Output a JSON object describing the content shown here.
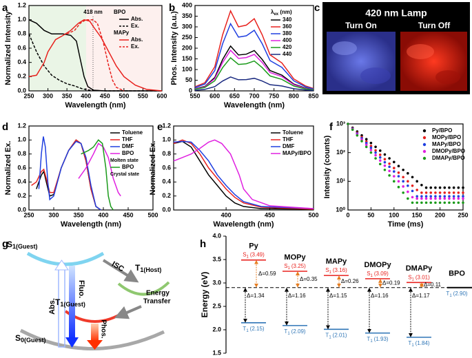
{
  "panel_labels": [
    "a",
    "b",
    "c",
    "d",
    "e",
    "f",
    "g",
    "h"
  ],
  "image_panel": {
    "title": "420 nm Lamp",
    "left": "Turn On",
    "right": "Turn Off"
  },
  "diagram": {
    "states": [
      {
        "symbol": "S",
        "sub": "1(Guest)"
      },
      {
        "symbol": "T",
        "sub": "1(Host)"
      },
      {
        "symbol": "T",
        "sub": "1(Guest)"
      },
      {
        "symbol": "S",
        "sub": "0(Guest)"
      }
    ],
    "isc": "ISC",
    "energy_transfer": [
      "Energy",
      "Transfer"
    ],
    "abs": "Abs.",
    "fluo": "Fluo.",
    "phos": "Phos."
  },
  "chart_data": [
    {
      "type": "line",
      "x_label": "Wavelength (nm)",
      "y_label": "Normalized Intensity",
      "xlim": [
        250,
        600
      ],
      "xticks": [
        250,
        300,
        350,
        400,
        450,
        500,
        550,
        600
      ],
      "ylim": [
        0,
        1.2
      ],
      "yticks": [
        {
          "value": 0,
          "label": "0.0"
        },
        0.2,
        0.4,
        0.6,
        0.8,
        {
          "value": 1,
          "label": "1.0"
        },
        1.2
      ],
      "legend": "upper right",
      "legend_text_colored": true,
      "annotation": "418 nm",
      "series": [
        {
          "group": "BPO",
          "name": "Abs.",
          "color": "#000000",
          "dash": false,
          "x": [
            250,
            270,
            290,
            310,
            340,
            360,
            375,
            385,
            395,
            405,
            420,
            450,
            600
          ],
          "values": [
            1.0,
            0.95,
            0.85,
            0.8,
            0.8,
            0.78,
            0.7,
            0.45,
            0.2,
            0.06,
            0.01,
            0,
            0
          ]
        },
        {
          "name": "Ex.",
          "color": "#000000",
          "dash": true,
          "x": [
            250,
            270,
            290,
            310,
            330,
            350,
            370,
            390,
            410,
            450,
            600
          ],
          "values": [
            0.8,
            0.55,
            0.35,
            0.22,
            0.15,
            0.1,
            0.07,
            0.03,
            0.01,
            0,
            0
          ]
        },
        {
          "group": "MAPy",
          "name": "Abs.",
          "color": "#e8211d",
          "dash": false,
          "x": [
            250,
            270,
            290,
            300,
            320,
            340,
            360,
            380,
            395,
            410,
            420,
            440,
            460,
            480,
            500,
            530,
            560,
            600
          ],
          "values": [
            0.2,
            0.22,
            0.4,
            0.55,
            0.72,
            0.78,
            0.85,
            0.95,
            1.0,
            0.98,
            0.9,
            0.75,
            0.55,
            0.35,
            0.2,
            0.08,
            0.02,
            0
          ]
        },
        {
          "name": "Ex.",
          "color": "#e8211d",
          "dash": true,
          "x": [
            350,
            370,
            385,
            400,
            418,
            430,
            445,
            460,
            470,
            480,
            500
          ],
          "values": [
            0.8,
            0.85,
            0.95,
            1.0,
            1.0,
            0.95,
            0.7,
            0.35,
            0.15,
            0.05,
            0
          ]
        }
      ]
    },
    {
      "type": "line",
      "x_label": "Wavelength (nm)",
      "y_label": "Phos. Intensity (a.u.)",
      "xlim": [
        550,
        850
      ],
      "xticks": [
        550,
        600,
        650,
        700,
        750,
        800,
        850
      ],
      "ylim": [
        0,
        400
      ],
      "yticks": [
        0,
        50,
        100,
        150,
        200,
        250,
        300,
        350,
        400
      ],
      "legend": "upper right",
      "legend_text_colored": false,
      "legend_title": {
        "main": "λ",
        "sub": "ex",
        "rest": " (nm)"
      },
      "x": [
        550,
        575,
        600,
        620,
        640,
        660,
        680,
        700,
        720,
        740,
        770,
        800,
        830,
        850
      ],
      "series": [
        {
          "name": "340",
          "color": "#000000",
          "values": [
            11,
            21,
            63,
            147,
            210,
            168,
            172,
            189,
            147,
            95,
            74,
            32,
            13,
            6
          ]
        },
        {
          "name": "360",
          "color": "#e8211d",
          "values": [
            19,
            38,
            113,
            263,
            375,
            300,
            308,
            338,
            263,
            169,
            131,
            56,
            23,
            11
          ]
        },
        {
          "name": "380",
          "color": "#1f3fe0",
          "values": [
            16,
            32,
            95,
            221,
            315,
            252,
            258,
            284,
            221,
            142,
            110,
            47,
            19,
            9
          ]
        },
        {
          "name": "400",
          "color": "#e020e0",
          "values": [
            10,
            19,
            57,
            133,
            190,
            152,
            156,
            171,
            133,
            86,
            67,
            29,
            11,
            6
          ]
        },
        {
          "name": "420",
          "color": "#1a9a1a",
          "values": [
            8,
            16,
            47,
            109,
            155,
            124,
            127,
            140,
            109,
            70,
            54,
            23,
            9,
            5
          ]
        },
        {
          "name": "440",
          "color": "#1a2a80",
          "values": [
            3,
            7,
            20,
            46,
            65,
            52,
            53,
            59,
            46,
            29,
            23,
            10,
            4,
            2
          ]
        }
      ]
    },
    {
      "type": "line",
      "x_label": "Wavelength (nm)",
      "y_label": "Normalized Ex.",
      "xlim": [
        250,
        500
      ],
      "xticks": [
        250,
        300,
        350,
        400,
        450,
        500
      ],
      "ylim": [
        0,
        1.2
      ],
      "yticks": [
        {
          "value": 0,
          "label": "0.0"
        },
        0.2,
        0.4,
        0.6,
        0.8,
        {
          "value": 1,
          "label": "1.0"
        },
        1.2
      ],
      "legend": "upper right",
      "legend_text_colored": true,
      "series": [
        {
          "name": "Toluene",
          "color": "#000000",
          "x": [
            265,
            275,
            280,
            285,
            292,
            300,
            315,
            330,
            345,
            355,
            365,
            375,
            385,
            395
          ],
          "values": [
            0.3,
            0.5,
            0.55,
            0.4,
            0.2,
            0.22,
            0.6,
            0.85,
            1.0,
            0.95,
            0.7,
            0.3,
            0.05,
            0
          ]
        },
        {
          "name": "THF",
          "color": "#e8211d",
          "x": [
            255,
            265,
            275,
            280,
            285,
            292,
            300,
            315,
            330,
            345,
            355,
            365,
            375,
            385,
            395
          ],
          "values": [
            0.35,
            0.4,
            0.55,
            0.58,
            0.45,
            0.25,
            0.25,
            0.6,
            0.85,
            1.0,
            0.95,
            0.7,
            0.3,
            0.05,
            0
          ]
        },
        {
          "name": "DMF",
          "color": "#1f3fe0",
          "x": [
            270,
            275,
            279,
            283,
            288,
            292,
            300,
            315,
            330,
            345,
            355,
            365,
            375,
            385,
            395
          ],
          "values": [
            0.3,
            0.8,
            1.05,
            0.9,
            0.4,
            0.15,
            0.2,
            0.6,
            0.85,
            0.98,
            0.95,
            0.75,
            0.35,
            0.05,
            0
          ]
        },
        {
          "name": "BPO",
          "note": "Molten state",
          "color": "#e020e0",
          "x": [
            350,
            365,
            380,
            390,
            400,
            410,
            420,
            430,
            435
          ],
          "values": [
            0.45,
            0.6,
            0.8,
            0.95,
            0.9,
            0.75,
            0.45,
            0.25,
            0.2
          ]
        },
        {
          "name": "BPO",
          "note": "Crystal state",
          "color": "#1a9a1a",
          "x": [
            355,
            370,
            380,
            390,
            398,
            405,
            410,
            415,
            420
          ],
          "values": [
            0.8,
            0.85,
            0.9,
            1.0,
            0.95,
            0.6,
            0.2,
            0.05,
            0
          ]
        }
      ]
    },
    {
      "type": "line",
      "x_label": "Wavelength (nm)",
      "y_label": "Normalized Ex.",
      "xlim": [
        340,
        500
      ],
      "xticks": [
        400,
        450,
        500
      ],
      "ylim": [
        0,
        1.2
      ],
      "yticks": [
        {
          "value": 0,
          "label": "0.0"
        },
        0.2,
        0.4,
        0.6,
        0.8,
        {
          "value": 1,
          "label": "1.0"
        },
        1.2
      ],
      "legend": "upper right",
      "legend_text_colored": true,
      "series": [
        {
          "name": "Toluene",
          "color": "#000000",
          "x": [
            340,
            350,
            360,
            370,
            380,
            390,
            400,
            410,
            420,
            440,
            500
          ],
          "values": [
            0.95,
            0.98,
            0.9,
            0.7,
            0.5,
            0.35,
            0.2,
            0.1,
            0.05,
            0.02,
            0.01
          ]
        },
        {
          "name": "THF",
          "color": "#e8211d",
          "x": [
            340,
            350,
            360,
            370,
            380,
            390,
            400,
            410,
            420,
            440,
            500
          ],
          "values": [
            0.95,
            1.0,
            0.95,
            0.8,
            0.6,
            0.45,
            0.3,
            0.18,
            0.1,
            0.04,
            0.01
          ]
        },
        {
          "name": "DMF",
          "color": "#1f3fe0",
          "x": [
            340,
            350,
            360,
            370,
            380,
            390,
            400,
            410,
            420,
            440,
            500
          ],
          "values": [
            0.97,
            0.98,
            0.97,
            0.85,
            0.7,
            0.5,
            0.35,
            0.22,
            0.12,
            0.05,
            0.02
          ]
        },
        {
          "name": "MAPy/BPO",
          "color": "#e020e0",
          "x": [
            340,
            350,
            360,
            370,
            380,
            387,
            395,
            405,
            415,
            420,
            430,
            450,
            500
          ],
          "values": [
            0.7,
            0.75,
            0.8,
            0.88,
            0.97,
            1.0,
            0.95,
            0.8,
            0.5,
            0.3,
            0.15,
            0.06,
            0.02
          ]
        }
      ]
    },
    {
      "type": "scatter",
      "x_label": "Time (ms)",
      "y_label": "Intensity (counts)",
      "xlim": [
        0,
        250
      ],
      "xticks": [
        0,
        50,
        100,
        150,
        200,
        250
      ],
      "y_scale": "log",
      "ylim": [
        1,
        1000
      ],
      "yticks": [
        {
          "value": 1,
          "label": "10⁰"
        },
        {
          "value": 10,
          "label": "10¹"
        },
        {
          "value": 100,
          "label": "10²"
        },
        {
          "value": 1000,
          "label": "10³"
        }
      ],
      "legend": "upper right",
      "legend_text_colored": false,
      "x": [
        0,
        10,
        20,
        30,
        40,
        50,
        60,
        70,
        80,
        90,
        100,
        110,
        120,
        130,
        140,
        150,
        160,
        170,
        180,
        190,
        200,
        210,
        220,
        230,
        240,
        250
      ],
      "series": [
        {
          "name": "Py/BPO",
          "color": "#000000",
          "values": [
            1000,
            736,
            542,
            399,
            293,
            216,
            159,
            117,
            86,
            63,
            47,
            34,
            25,
            19,
            14,
            10,
            7.4,
            6,
            6,
            6,
            6,
            6,
            6,
            6,
            6,
            6
          ]
        },
        {
          "name": "MOPy/BPO",
          "color": "#e8211d",
          "values": [
            1000,
            702,
            493,
            346,
            243,
            170,
            120,
            84,
            59,
            41,
            29,
            20,
            14,
            10,
            7,
            5,
            4,
            4,
            4,
            4,
            4,
            4,
            4,
            4,
            4,
            4
          ]
        },
        {
          "name": "MAPy/BPO",
          "color": "#1f3fe0",
          "values": [
            1000,
            681,
            464,
            316,
            215,
            147,
            100,
            68,
            46,
            32,
            22,
            15,
            10,
            7,
            4.6,
            3,
            3,
            3,
            3,
            3,
            3,
            3,
            3,
            3,
            3,
            3
          ]
        },
        {
          "name": "DMOPy/BPO",
          "color": "#e020e0",
          "values": [
            1000,
            658,
            433,
            285,
            187,
            123,
            81,
            53,
            35,
            23,
            15,
            10,
            6.6,
            4.3,
            2.8,
            2.5,
            2.5,
            2.5,
            2.5,
            2.5,
            2.5,
            2.5,
            2.5,
            2.5,
            2.5,
            2.5
          ]
        },
        {
          "name": "DMAPy/BPO",
          "color": "#1a9a1a",
          "values": [
            1000,
            631,
            398,
            251,
            158,
            100,
            63,
            40,
            25,
            16,
            10,
            6.3,
            4,
            2.5,
            1.8,
            1.8,
            1.8,
            1.8,
            1.8,
            1.8,
            1.8,
            1.8,
            1.8,
            1.8,
            1.8,
            1.8
          ]
        }
      ]
    },
    {
      "type": "energy",
      "y_label": "Energy (eV)",
      "ylim": [
        1.5,
        4.0
      ],
      "yticks": [
        1.5,
        {
          "value": 2,
          "label": "2.0"
        },
        2.5,
        {
          "value": 3,
          "label": "3.0"
        },
        3.5,
        {
          "value": 4,
          "label": "4.0"
        }
      ],
      "categories": [
        "Py",
        "MOPy",
        "MAPy",
        "DMOPy",
        "DMAPy"
      ],
      "s1": {
        "symbol": "S",
        "sub": "1",
        "color": "#e8211d",
        "values": [
          3.49,
          3.25,
          3.16,
          3.09,
          3.01
        ],
        "value_labels": [
          "(3.49)",
          "(3.25)",
          "(3.16)",
          "(3.09)",
          "(3.01)"
        ]
      },
      "t1": {
        "symbol": "T",
        "sub": "1",
        "color": "#2e75b6",
        "values": [
          2.15,
          2.09,
          2.01,
          1.93,
          1.84
        ],
        "value_labels": [
          "(2.15)",
          "(2.09)",
          "(2.01)",
          "(1.93)",
          "(1.84)"
        ]
      },
      "delta_st": {
        "color": "#e67e22",
        "values": [
          0.59,
          0.35,
          0.26,
          0.19,
          0.11
        ],
        "value_labels": [
          "Δ=0.59",
          "Δ=0.35",
          "Δ=0.26",
          "Δ=0.19",
          "Δ=0.11"
        ]
      },
      "delta_tt": {
        "color": "#000000",
        "values": [
          1.34,
          1.16,
          1.15,
          1.16,
          1.17
        ],
        "value_labels": [
          "Δ=1.34",
          "Δ=1.16",
          "Δ=1.15",
          "Δ=1.16",
          "Δ=1.17"
        ]
      },
      "host": {
        "name": "BPO",
        "t1": 2.9,
        "t1_label": "(2.90)"
      }
    }
  ]
}
